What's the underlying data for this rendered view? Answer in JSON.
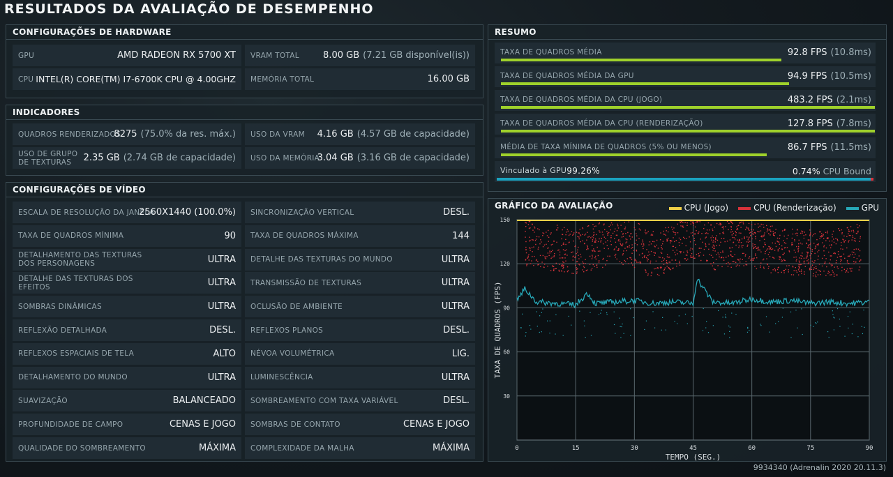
{
  "title": "RESULTADOS DA AVALIAÇÃO DE DESEMPENHO",
  "colors": {
    "accent_green": "#9fd12b",
    "gpu_bound": "#1aa3c0",
    "cpu_bound": "#d8333b",
    "cpu_game": "#f0d048",
    "cpu_render": "#d8333b",
    "gpu_line": "#27a8b8"
  },
  "hardware": {
    "title": "CONFIGURAÇÕES DE HARDWARE",
    "rows": [
      {
        "label": "GPU",
        "value": "AMD RADEON RX 5700 XT",
        "extra": ""
      },
      {
        "label": "VRAM TOTAL",
        "value": "8.00 GB",
        "extra": "(7.21 GB disponível(is))"
      },
      {
        "label": "CPU",
        "value": "INTEL(R) CORE(TM) I7-6700K CPU @ 4.00GHZ",
        "extra": ""
      },
      {
        "label": "MEMÓRIA TOTAL",
        "value": "16.00 GB",
        "extra": ""
      }
    ]
  },
  "indicators": {
    "title": "INDICADORES",
    "rows": [
      {
        "label": "QUADROS RENDERIZADOS",
        "value": "8275",
        "extra": "(75.0% da res. máx.)"
      },
      {
        "label": "USO DA VRAM",
        "value": "4.16 GB",
        "extra": "(4.57 GB de capacidade)"
      },
      {
        "label": "USO DE GRUPO DE TEXTURAS",
        "value": "2.35 GB",
        "extra": "(2.74 GB de capacidade)"
      },
      {
        "label": "USO DA MEMÓRIA",
        "value": "3.04 GB",
        "extra": "(3.16 GB de capacidade)"
      }
    ]
  },
  "video": {
    "title": "CONFIGURAÇÕES DE VÍDEO",
    "rows": [
      {
        "label": "ESCALA DE RESOLUÇÃO DA JANELA",
        "value": "2560X1440 (100.0%)"
      },
      {
        "label": "SINCRONIZAÇÃO VERTICAL",
        "value": "DESL."
      },
      {
        "label": "TAXA DE QUADROS MÍNIMA",
        "value": "90"
      },
      {
        "label": "TAXA DE QUADROS MÁXIMA",
        "value": "144"
      },
      {
        "label": "DETALHAMENTO DAS TEXTURAS DOS PERSONAGENS",
        "value": "ULTRA"
      },
      {
        "label": "DETALHE DAS TEXTURAS DO MUNDO",
        "value": "ULTRA"
      },
      {
        "label": "DETALHE DAS TEXTURAS DOS EFEITOS",
        "value": "ULTRA"
      },
      {
        "label": "TRANSMISSÃO DE TEXTURAS",
        "value": "ULTRA"
      },
      {
        "label": "SOMBRAS DINÂMICAS",
        "value": "ULTRA"
      },
      {
        "label": "OCLUSÃO DE AMBIENTE",
        "value": "ULTRA"
      },
      {
        "label": "REFLEXÃO DETALHADA",
        "value": "DESL."
      },
      {
        "label": "REFLEXOS PLANOS",
        "value": "DESL."
      },
      {
        "label": "REFLEXOS ESPACIAIS DE TELA",
        "value": "ALTO"
      },
      {
        "label": "NÉVOA VOLUMÉTRICA",
        "value": "LIG."
      },
      {
        "label": "DETALHAMENTO DO MUNDO",
        "value": "ULTRA"
      },
      {
        "label": "LUMINESCÊNCIA",
        "value": "ULTRA"
      },
      {
        "label": "SUAVIZAÇÃO",
        "value": "BALANCEADO"
      },
      {
        "label": "SOMBREAMENTO COM TAXA VARIÁVEL",
        "value": "DESL."
      },
      {
        "label": "PROFUNDIDADE DE CAMPO",
        "value": "CENAS E JOGO"
      },
      {
        "label": "SOMBRAS DE CONTATO",
        "value": "CENAS E JOGO"
      },
      {
        "label": "QUALIDADE DO SOMBREAMENTO",
        "value": "MÁXIMA"
      },
      {
        "label": "COMPLEXIDADE DA MALHA",
        "value": "MÁXIMA"
      }
    ]
  },
  "summary": {
    "title": "RESUMO",
    "rows": [
      {
        "label": "TAXA DE QUADROS MÉDIA",
        "value": "92.8 FPS",
        "extra": "(10.8ms)",
        "bar": 0.75
      },
      {
        "label": "TAXA DE QUADROS MÉDIA DA GPU",
        "value": "94.9 FPS",
        "extra": "(10.5ms)",
        "bar": 0.77
      },
      {
        "label": "TAXA DE QUADROS MÉDIA DA CPU (JOGO)",
        "value": "483.2 FPS",
        "extra": "(2.1ms)",
        "bar": 1.0
      },
      {
        "label": "TAXA DE QUADROS MÉDIA DA CPU (RENDERIZAÇÃO)",
        "value": "127.8 FPS",
        "extra": "(7.8ms)",
        "bar": 1.0
      },
      {
        "label": "MÉDIA DE TAXA MÍNIMA DE QUADROS (5% OU MENOS)",
        "value": "86.7 FPS",
        "extra": "(11.5ms)",
        "bar": 0.71
      }
    ],
    "bound": {
      "gpu_label": "Vinculado à GPU",
      "gpu_value": "99.26%",
      "cpu_value": "0.74%",
      "cpu_label": "CPU Bound",
      "gpu_fraction": 0.9926
    }
  },
  "chart_data": {
    "type": "scatter",
    "title": "GRÁFICO DA AVALIAÇÃO",
    "xlabel": "TEMPO (SEG.)",
    "ylabel": "TAXA DE QUADROS (FPS)",
    "xlim": [
      0,
      90
    ],
    "ylim": [
      0,
      150
    ],
    "xticks": [
      0,
      15,
      30,
      45,
      60,
      75,
      90
    ],
    "yticks": [
      30,
      60,
      90,
      120,
      150
    ],
    "grid": true,
    "legend_position": "top-right",
    "series": [
      {
        "name": "CPU (Jogo)",
        "color": "#f0d048",
        "values_note": "above 150 (clipped at top)",
        "x": [
          0,
          90
        ],
        "y": [
          150,
          150
        ]
      },
      {
        "name": "CPU (Renderização)",
        "color": "#d8333b",
        "x": [
          2,
          8,
          15,
          20,
          28,
          35,
          45,
          50,
          58,
          65,
          72,
          80,
          88
        ],
        "y": [
          135,
          132,
          128,
          133,
          136,
          126,
          140,
          132,
          135,
          130,
          128,
          127,
          132
        ]
      },
      {
        "name": "GPU",
        "color": "#27a8b8",
        "x": [
          0,
          2,
          5,
          10,
          15,
          18,
          20,
          25,
          30,
          35,
          40,
          45,
          46,
          50,
          55,
          60,
          65,
          70,
          75,
          80,
          85,
          90
        ],
        "y": [
          95,
          103,
          94,
          93,
          92,
          100,
          93,
          94,
          95,
          93,
          94,
          93,
          110,
          94,
          93,
          96,
          94,
          95,
          93,
          94,
          93,
          94
        ]
      }
    ]
  },
  "footer": "9934340 (Adrenalin 2020 20.11.3)"
}
